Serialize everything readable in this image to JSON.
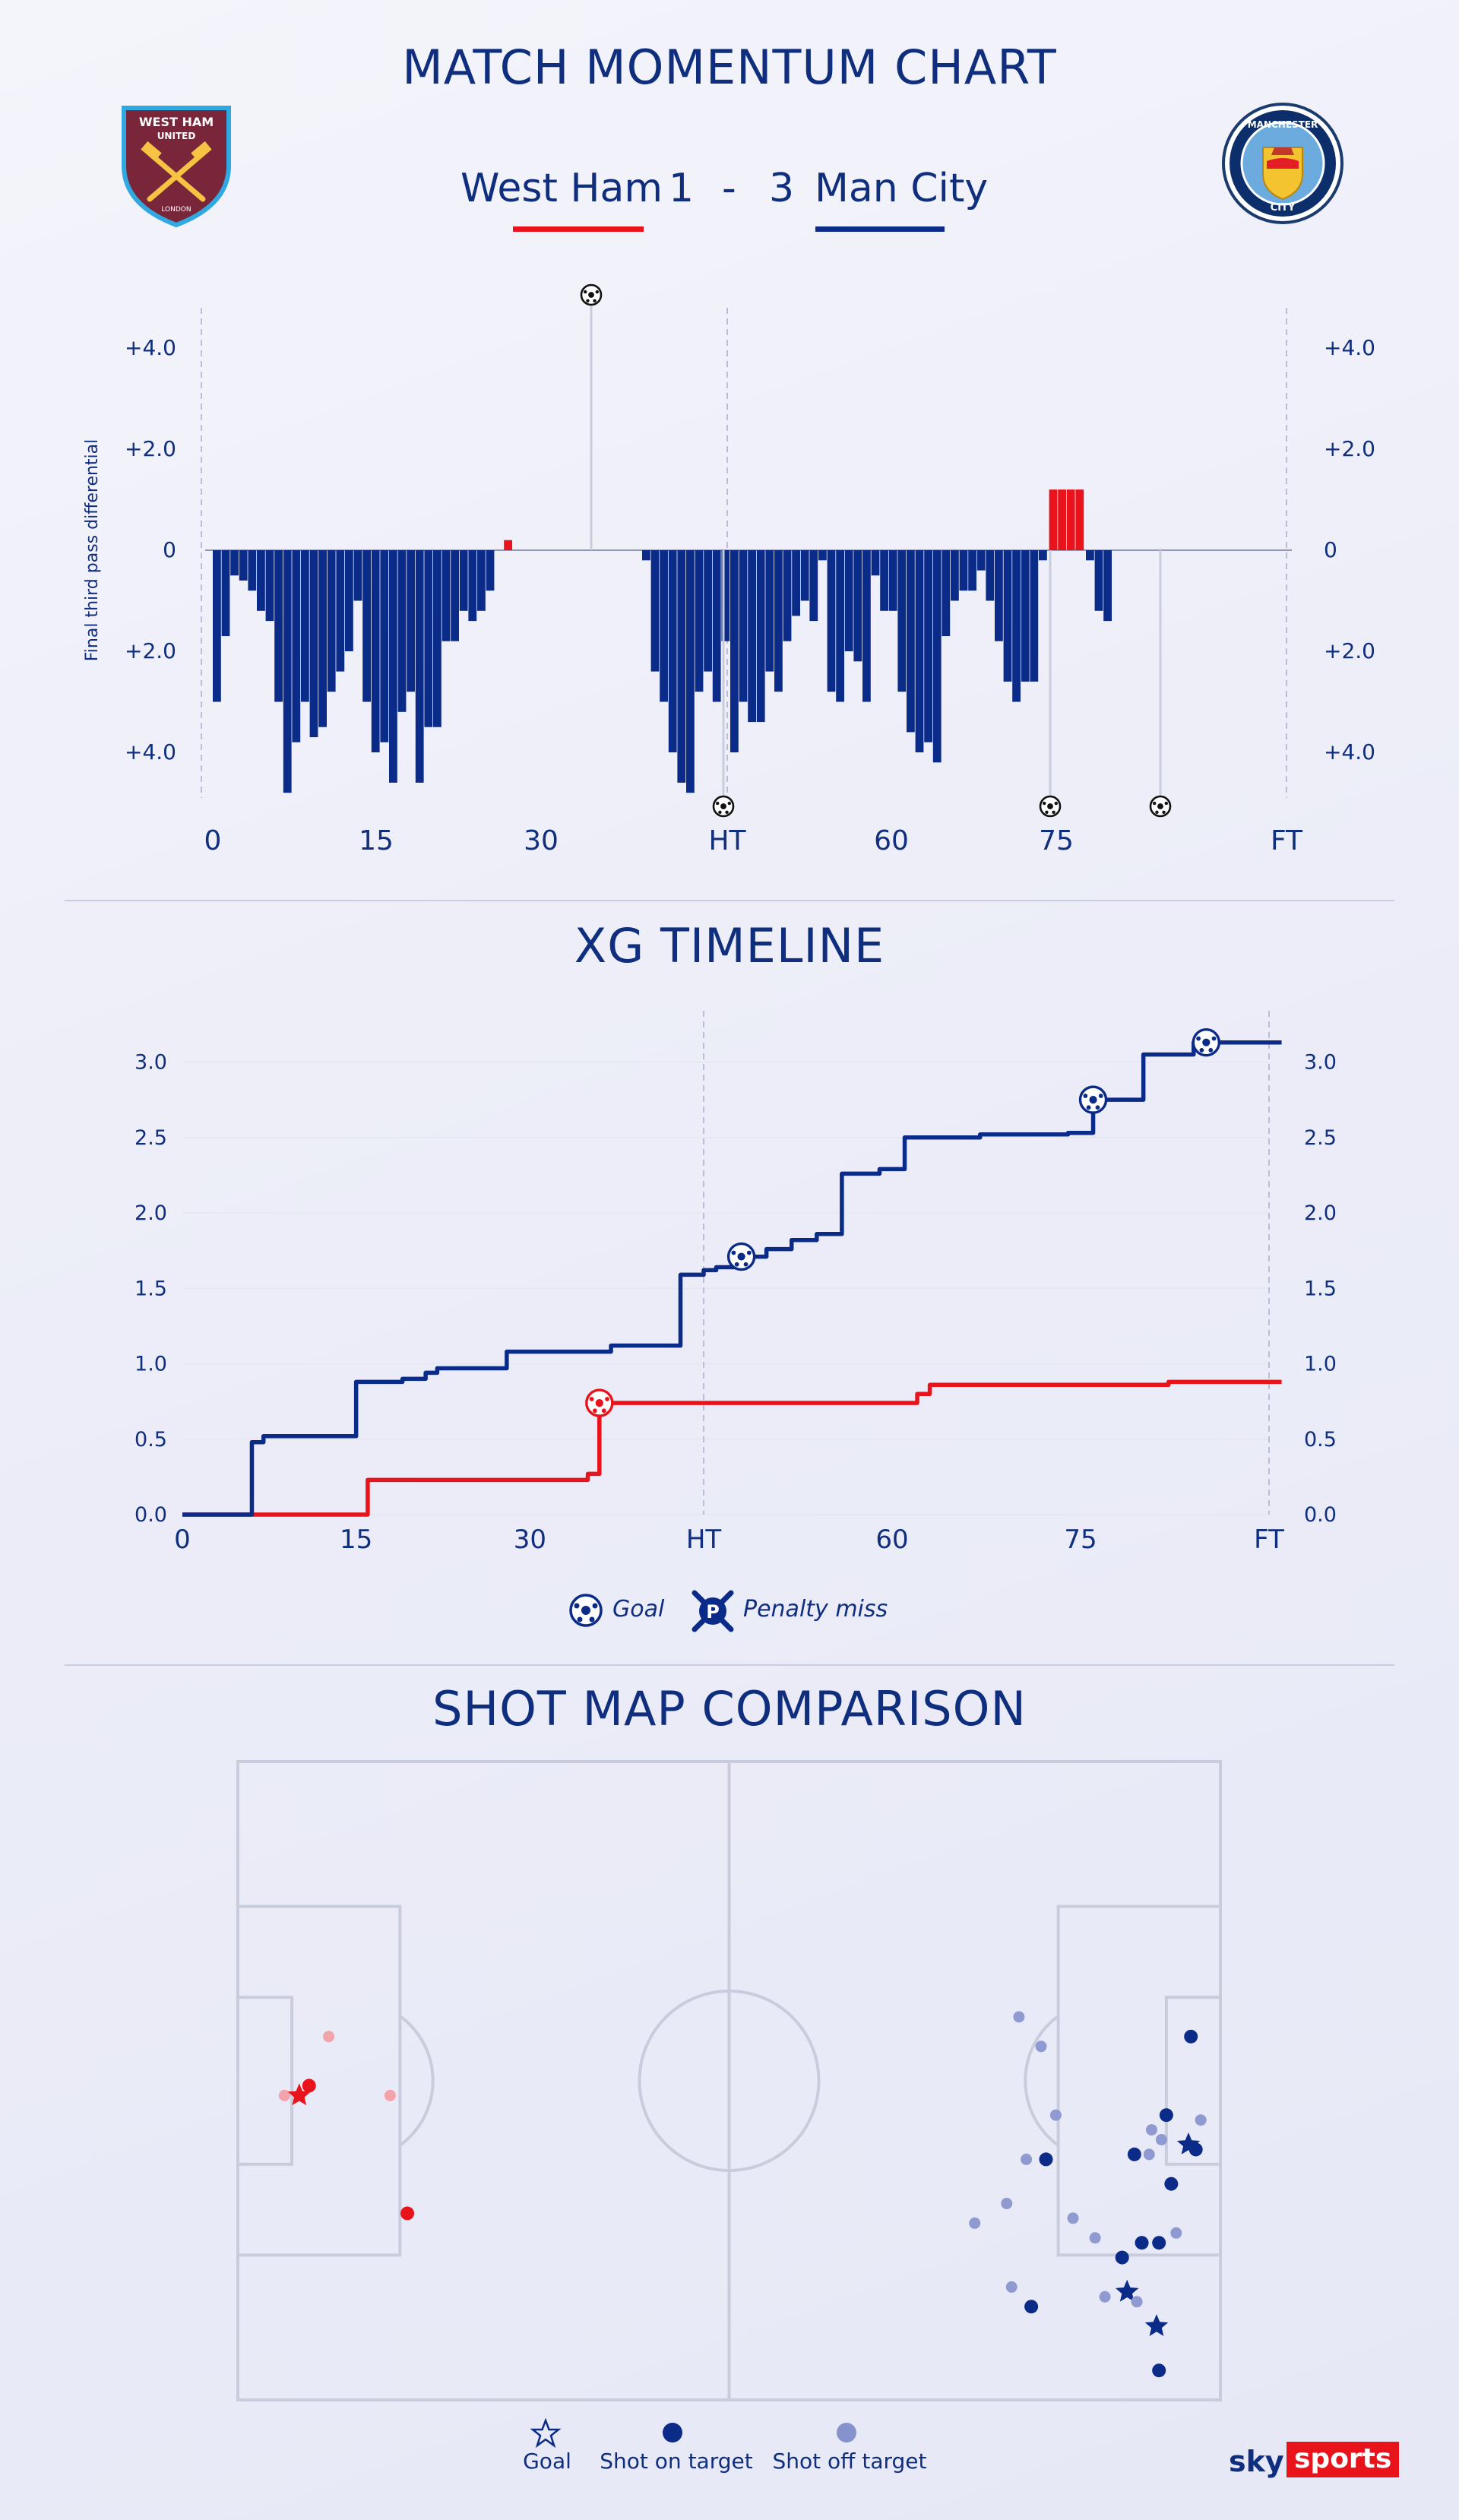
{
  "header": {
    "title": "MATCH MOMENTUM CHART",
    "home_team": "West Ham",
    "home_score": "1",
    "separator": "-",
    "away_score": "3",
    "away_team": "Man City",
    "home_badge_text": "WEST HAM UNITED",
    "home_badge_city": "LONDON",
    "away_badge_text": "MANCHESTER CITY"
  },
  "colors": {
    "home": "#e8131b",
    "away": "#0b2b88",
    "text": "#0f2e7e",
    "grid": "#b9bfd6"
  },
  "chart_data": [
    {
      "type": "bar",
      "title": "MATCH MOMENTUM CHART",
      "ylabel": "Final third pass differential",
      "ytick_labels": [
        "+4.0",
        "+2.0",
        "0",
        "+2.0",
        "+4.0"
      ],
      "ylim": [
        -5,
        5
      ],
      "xtick_labels": [
        "0",
        "15",
        "30",
        "HT",
        "60",
        "75",
        "FT"
      ],
      "first_half": [
        -3.0,
        -1.7,
        -0.5,
        -0.6,
        -0.8,
        -1.2,
        -1.4,
        -3.0,
        -4.8,
        -3.8,
        -3.0,
        -3.7,
        -3.5,
        -2.8,
        -2.4,
        -2.0,
        -1.0,
        -3.0,
        -4.0,
        -3.8,
        -4.6,
        -3.2,
        -2.8,
        -4.6,
        -3.5,
        -3.5,
        -1.8,
        -1.8,
        -1.2,
        -1.4,
        -1.2,
        -0.8
      ],
      "first_half_home_bar": 0.2,
      "second_half": [
        -0.2,
        -2.4,
        -3.0,
        -4.0,
        -4.6,
        -4.8,
        -2.8,
        -2.4,
        -3.0,
        -1.8,
        -4.0,
        -3.0,
        -3.4,
        -3.4,
        -2.4,
        -2.8,
        -1.8,
        -1.3,
        -1.0,
        -1.4,
        -0.2,
        -2.8,
        -3.0,
        -2.0,
        -2.2,
        -3.0,
        -0.5,
        -1.2,
        -1.2,
        -2.8,
        -3.6,
        -4.0,
        -3.8,
        -4.2,
        -1.7,
        -1.0,
        -0.8,
        -0.8,
        -0.4,
        -1.0,
        -1.8,
        -2.6,
        -3.0,
        -2.6,
        -2.6,
        -0.2
      ],
      "second_half_home_bars": [
        1.2,
        1.2,
        1.2,
        1.2
      ],
      "second_half_tail": [
        -0.2,
        -1.2,
        -1.4
      ],
      "events": [
        {
          "label": "goal",
          "team": "home",
          "minute": 35
        },
        {
          "label": "goal",
          "team": "away",
          "minute": 46
        },
        {
          "label": "goal",
          "team": "away",
          "minute": 75
        },
        {
          "label": "goal",
          "team": "away",
          "minute": 85
        }
      ]
    },
    {
      "type": "line",
      "title": "XG TIMELINE",
      "xtick_labels": [
        "0",
        "15",
        "30",
        "HT",
        "60",
        "75",
        "FT"
      ],
      "ytick_labels": [
        "0.0",
        "0.5",
        "1.0",
        "1.5",
        "2.0",
        "2.5",
        "3.0"
      ],
      "ylim": [
        0,
        3.3
      ],
      "series": [
        {
          "name": "Man City",
          "color": "#0b2b88",
          "steps": [
            [
              0,
              0.0
            ],
            [
              6,
              0.0
            ],
            [
              6,
              0.48
            ],
            [
              7,
              0.52
            ],
            [
              14,
              0.52
            ],
            [
              15,
              0.88
            ],
            [
              18,
              0.88
            ],
            [
              19,
              0.9
            ],
            [
              21,
              0.94
            ],
            [
              22,
              0.97
            ],
            [
              28,
              0.97
            ],
            [
              28,
              1.08
            ],
            [
              37,
              1.12
            ],
            [
              43,
              1.12
            ],
            [
              43,
              1.59
            ],
            [
              45,
              1.62
            ],
            [
              46,
              1.64
            ],
            [
              48,
              1.71
            ],
            [
              50,
              1.76
            ],
            [
              52,
              1.82
            ],
            [
              54,
              1.86
            ],
            [
              56,
              2.26
            ],
            [
              59,
              2.29
            ],
            [
              61,
              2.5
            ],
            [
              67,
              2.52
            ],
            [
              74,
              2.53
            ],
            [
              76,
              2.75
            ],
            [
              80,
              2.75
            ],
            [
              80,
              3.05
            ],
            [
              84,
              3.05
            ],
            [
              84,
              3.13
            ],
            [
              91,
              3.13
            ]
          ],
          "goals": [
            [
              48,
              1.71
            ],
            [
              76,
              2.75
            ],
            [
              85,
              3.13
            ]
          ]
        },
        {
          "name": "West Ham",
          "color": "#e8131b",
          "steps": [
            [
              0,
              0.0
            ],
            [
              16,
              0.0
            ],
            [
              16,
              0.23
            ],
            [
              35,
              0.23
            ],
            [
              35,
              0.27
            ],
            [
              36,
              0.74
            ],
            [
              62,
              0.74
            ],
            [
              62,
              0.8
            ],
            [
              63,
              0.86
            ],
            [
              81,
              0.86
            ],
            [
              82,
              0.88
            ],
            [
              91,
              0.88
            ]
          ],
          "goals": [
            [
              36,
              0.74
            ]
          ]
        }
      ]
    },
    {
      "type": "scatter",
      "title": "SHOT MAP COMPARISON",
      "home_shots": [
        {
          "x": 9.5,
          "y": 68,
          "outcome": "off"
        },
        {
          "x": 12.5,
          "y": 68,
          "outcome": "goal"
        },
        {
          "x": 14.5,
          "y": 66,
          "outcome": "on"
        },
        {
          "x": 18.5,
          "y": 56,
          "outcome": "off"
        },
        {
          "x": 31,
          "y": 68,
          "outcome": "off"
        },
        {
          "x": 34.5,
          "y": 92,
          "outcome": "on"
        }
      ],
      "away_shots": [
        {
          "x": 187.5,
          "y": 124,
          "outcome": "on"
        },
        {
          "x": 187,
          "y": 115,
          "outcome": "goal"
        },
        {
          "x": 161.5,
          "y": 111,
          "outcome": "on"
        },
        {
          "x": 181,
          "y": 108,
          "outcome": "goal"
        },
        {
          "x": 176.5,
          "y": 109,
          "outcome": "off"
        },
        {
          "x": 183,
          "y": 110,
          "outcome": "off"
        },
        {
          "x": 157.5,
          "y": 107,
          "outcome": "off"
        },
        {
          "x": 180,
          "y": 101,
          "outcome": "on"
        },
        {
          "x": 184,
          "y": 98,
          "outcome": "on"
        },
        {
          "x": 187.5,
          "y": 98,
          "outcome": "on"
        },
        {
          "x": 174.5,
          "y": 97,
          "outcome": "off"
        },
        {
          "x": 170,
          "y": 93,
          "outcome": "off"
        },
        {
          "x": 191,
          "y": 96,
          "outcome": "off"
        },
        {
          "x": 190,
          "y": 86,
          "outcome": "on"
        },
        {
          "x": 195,
          "y": 79,
          "outcome": "on"
        },
        {
          "x": 193.5,
          "y": 78,
          "outcome": "goal"
        },
        {
          "x": 182.5,
          "y": 80,
          "outcome": "on"
        },
        {
          "x": 150,
          "y": 94,
          "outcome": "off"
        },
        {
          "x": 156.5,
          "y": 90,
          "outcome": "off"
        },
        {
          "x": 160.5,
          "y": 81,
          "outcome": "off"
        },
        {
          "x": 164.5,
          "y": 81,
          "outcome": "on"
        },
        {
          "x": 185.5,
          "y": 80,
          "outcome": "off"
        },
        {
          "x": 188,
          "y": 77,
          "outcome": "off"
        },
        {
          "x": 186,
          "y": 75,
          "outcome": "off"
        },
        {
          "x": 189,
          "y": 72,
          "outcome": "on"
        },
        {
          "x": 166.5,
          "y": 72,
          "outcome": "off"
        },
        {
          "x": 194,
          "y": 56,
          "outcome": "on"
        },
        {
          "x": 196,
          "y": 73,
          "outcome": "off"
        },
        {
          "x": 163.5,
          "y": 58,
          "outcome": "off"
        },
        {
          "x": 159,
          "y": 52,
          "outcome": "off"
        }
      ]
    }
  ],
  "sections": {
    "xg_title": "XG TIMELINE",
    "shot_title": "SHOT MAP COMPARISON"
  },
  "xg_legend": {
    "goal": "Goal",
    "penalty_miss": "Penalty miss"
  },
  "shot_legend": {
    "goal": "Goal",
    "on_target": "Shot on target",
    "off_target": "Shot off target"
  },
  "brand": {
    "sky": "sky",
    "sports": "sports"
  }
}
